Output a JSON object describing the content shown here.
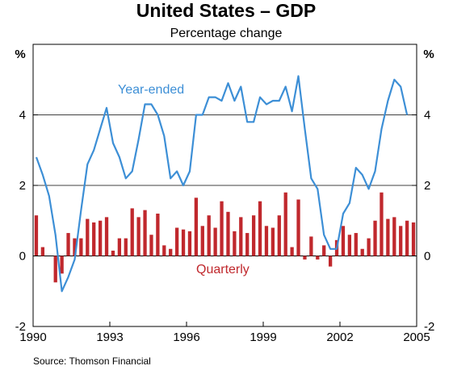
{
  "chart_data": {
    "type": "bar+line",
    "title": "United States – GDP",
    "subtitle": "Percentage change",
    "y_unit_left": "%",
    "y_unit_right": "%",
    "ylim": [
      -2,
      6
    ],
    "xlim": [
      1990,
      2005
    ],
    "y_ticks": [
      -2,
      0,
      2,
      4
    ],
    "y_tick_labels": [
      "-2",
      "0",
      "2",
      "4"
    ],
    "x_ticks": [
      1990,
      1993,
      1996,
      1999,
      2002,
      2005
    ],
    "x_tick_labels": [
      "1990",
      "1993",
      "1996",
      "1999",
      "2002",
      "2005"
    ],
    "gridlines": [
      2,
      4
    ],
    "source": "Source: Thomson Financial",
    "series": [
      {
        "name": "Year-ended",
        "kind": "line",
        "color": "#3d8fd6",
        "x": [
          1990.0,
          1990.25,
          1990.5,
          1990.75,
          1991.0,
          1991.25,
          1991.5,
          1991.75,
          1992.0,
          1992.25,
          1992.5,
          1992.75,
          1993.0,
          1993.25,
          1993.5,
          1993.75,
          1994.0,
          1994.25,
          1994.5,
          1994.75,
          1995.0,
          1995.25,
          1995.5,
          1995.75,
          1996.0,
          1996.25,
          1996.5,
          1996.75,
          1997.0,
          1997.25,
          1997.5,
          1997.75,
          1998.0,
          1998.25,
          1998.5,
          1998.75,
          1999.0,
          1999.25,
          1999.5,
          1999.75,
          2000.0,
          2000.25,
          2000.5,
          2000.75,
          2001.0,
          2001.25,
          2001.5,
          2001.75,
          2002.0,
          2002.25,
          2002.5,
          2002.75,
          2003.0,
          2003.25,
          2003.5,
          2003.75,
          2004.0,
          2004.25,
          2004.5
        ],
        "values": [
          2.8,
          2.3,
          1.7,
          0.6,
          -1.0,
          -0.6,
          -0.1,
          1.3,
          2.6,
          3.0,
          3.6,
          4.2,
          3.2,
          2.8,
          2.2,
          2.4,
          3.3,
          4.3,
          4.3,
          4.0,
          3.4,
          2.2,
          2.4,
          2.0,
          2.4,
          4.0,
          4.0,
          4.5,
          4.5,
          4.4,
          4.9,
          4.4,
          4.8,
          3.8,
          3.8,
          4.5,
          4.3,
          4.4,
          4.4,
          4.8,
          4.1,
          5.1,
          3.6,
          2.2,
          1.9,
          0.6,
          0.2,
          0.2,
          1.2,
          1.5,
          2.5,
          2.3,
          1.9,
          2.4,
          3.6,
          4.4,
          5.0,
          4.8,
          4.0
        ]
      },
      {
        "name": "Quarterly",
        "kind": "bar",
        "color": "#c0282d",
        "x": [
          1990.0,
          1990.25,
          1990.5,
          1990.75,
          1991.0,
          1991.25,
          1991.5,
          1991.75,
          1992.0,
          1992.25,
          1992.5,
          1992.75,
          1993.0,
          1993.25,
          1993.5,
          1993.75,
          1994.0,
          1994.25,
          1994.5,
          1994.75,
          1995.0,
          1995.25,
          1995.5,
          1995.75,
          1996.0,
          1996.25,
          1996.5,
          1996.75,
          1997.0,
          1997.25,
          1997.5,
          1997.75,
          1998.0,
          1998.25,
          1998.5,
          1998.75,
          1999.0,
          1999.25,
          1999.5,
          1999.75,
          2000.0,
          2000.25,
          2000.5,
          2000.75,
          2001.0,
          2001.25,
          2001.5,
          2001.75,
          2002.0,
          2002.25,
          2002.5,
          2002.75,
          2003.0,
          2003.25,
          2003.5,
          2003.75,
          2004.0,
          2004.25,
          2004.5,
          2004.75
        ],
        "values": [
          1.15,
          0.25,
          0.0,
          -0.75,
          -0.5,
          0.65,
          0.5,
          0.5,
          1.05,
          0.95,
          1.0,
          1.1,
          0.15,
          0.5,
          0.5,
          1.35,
          1.1,
          1.3,
          0.6,
          1.2,
          0.3,
          0.2,
          0.8,
          0.75,
          0.7,
          1.65,
          0.85,
          1.15,
          0.8,
          1.55,
          1.25,
          0.7,
          1.1,
          0.65,
          1.15,
          1.55,
          0.85,
          0.8,
          1.15,
          1.8,
          0.25,
          1.6,
          -0.1,
          0.55,
          -0.1,
          0.3,
          -0.3,
          0.45,
          0.85,
          0.6,
          0.65,
          0.2,
          0.5,
          1.0,
          1.8,
          1.05,
          1.1,
          0.85,
          1.0,
          0.95
        ]
      }
    ]
  }
}
